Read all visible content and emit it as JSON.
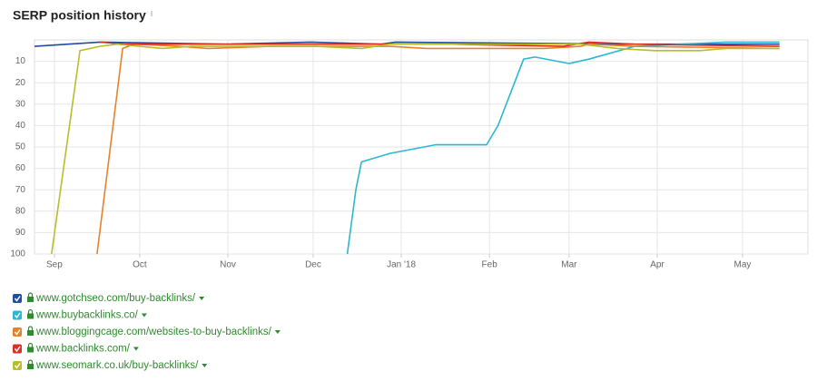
{
  "chart_data": {
    "type": "line",
    "title": "SERP position history",
    "ylim": [
      0,
      100
    ],
    "y_inverted": true,
    "yticks": [
      10,
      20,
      30,
      40,
      50,
      60,
      70,
      80,
      90,
      100
    ],
    "xlim": [
      -7,
      265
    ],
    "xticks": [
      {
        "value": 0,
        "label": "Sep"
      },
      {
        "value": 30,
        "label": "Oct"
      },
      {
        "value": 61,
        "label": "Nov"
      },
      {
        "value": 91,
        "label": "Dec"
      },
      {
        "value": 122,
        "label": "Jan '18"
      },
      {
        "value": 153,
        "label": "Feb"
      },
      {
        "value": 181,
        "label": "Mar"
      },
      {
        "value": 212,
        "label": "Apr"
      },
      {
        "value": 242,
        "label": "May"
      }
    ],
    "grid": true,
    "series": [
      {
        "name": "www.gotchseo.com/buy-backlinks/",
        "color": "#1f4e9c",
        "x": [
          -7,
          16,
          60,
          90,
          115,
          120,
          200,
          255
        ],
        "values": [
          3,
          1,
          2,
          1,
          2,
          1,
          2,
          2
        ]
      },
      {
        "name": "www.buybacklinks.co/",
        "color": "#2bb7cf",
        "x": [
          103,
          106,
          108,
          118,
          134,
          152,
          156,
          165,
          169,
          181,
          188,
          204,
          236,
          255
        ],
        "values": [
          100,
          70,
          57,
          53,
          49,
          49,
          40,
          9,
          8,
          11,
          9,
          3,
          1,
          1
        ]
      },
      {
        "name": "www.bloggingcage.com/websites-to-buy-backlinks/",
        "color": "#e8822a",
        "x": [
          15,
          24,
          28,
          44,
          54,
          76,
          108,
          118,
          131,
          172,
          185,
          188,
          204,
          255
        ],
        "values": [
          100,
          4,
          2,
          3,
          4,
          3,
          3,
          3,
          4,
          4,
          3,
          2,
          3,
          4
        ]
      },
      {
        "name": "www.backlinks.com/",
        "color": "#d93025",
        "x": [
          16,
          25,
          140,
          159,
          179,
          188,
          204,
          255
        ],
        "values": [
          1,
          2,
          2,
          2.5,
          3,
          1,
          2,
          3
        ]
      },
      {
        "name": "www.seomark.co.uk/buy-backlinks/",
        "color": "#b8bd2a",
        "x": [
          -1,
          9,
          16,
          22,
          38,
          48,
          92,
          108,
          118,
          185,
          198,
          211,
          227,
          236,
          255
        ],
        "values": [
          100,
          5,
          3,
          2,
          4,
          3,
          3,
          4,
          2,
          2,
          4,
          5,
          5,
          4,
          4
        ]
      }
    ]
  }
}
